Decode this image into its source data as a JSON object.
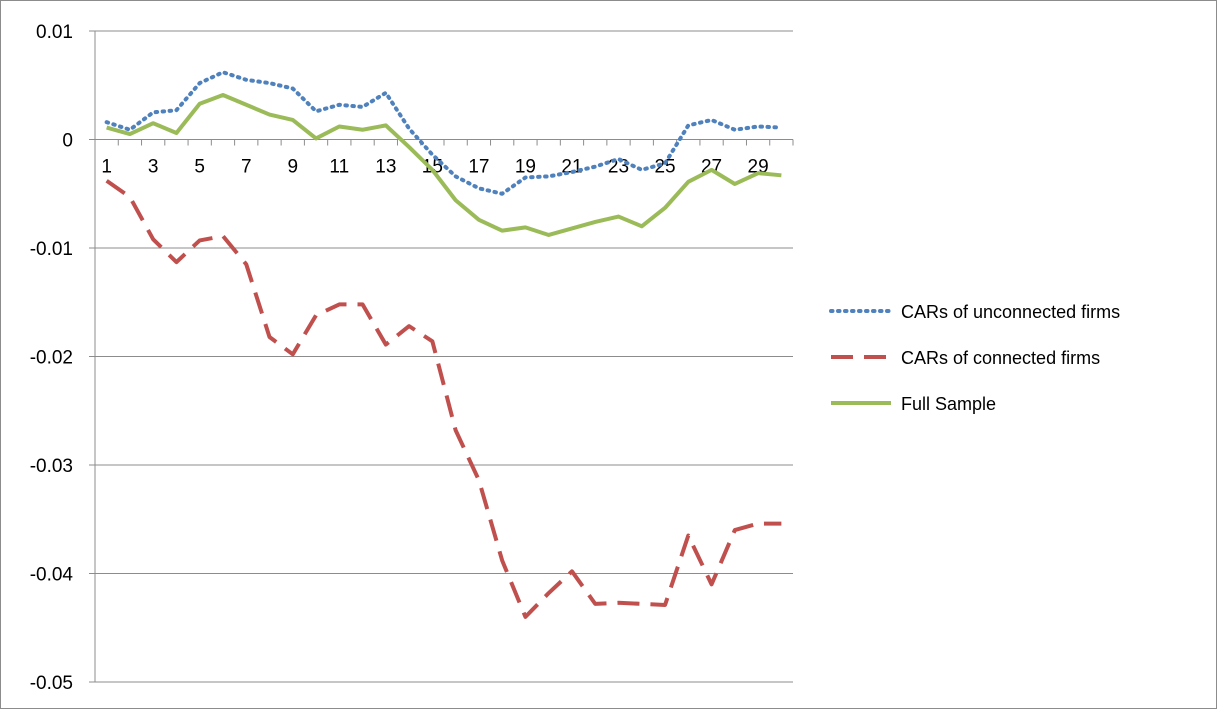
{
  "chart_data": {
    "type": "line",
    "title": "",
    "xlabel": "",
    "ylabel": "",
    "x": [
      1,
      2,
      3,
      4,
      5,
      6,
      7,
      8,
      9,
      10,
      11,
      12,
      13,
      14,
      15,
      16,
      17,
      18,
      19,
      20,
      21,
      22,
      23,
      24,
      25,
      26,
      27,
      28,
      29,
      30
    ],
    "x_tick_labels": [
      "1",
      "3",
      "5",
      "7",
      "9",
      "11",
      "13",
      "15",
      "17",
      "19",
      "21",
      "23",
      "25",
      "27",
      "29"
    ],
    "ylim": [
      -0.05,
      0.01
    ],
    "y_tick_labels": [
      "0.01",
      "0",
      "-0.01",
      "-0.02",
      "-0.03",
      "-0.04",
      "-0.05"
    ],
    "y_ticks": [
      0.01,
      0,
      -0.01,
      -0.02,
      -0.03,
      -0.04,
      -0.05
    ],
    "grid": "horizontal",
    "legend_position": "right",
    "series": [
      {
        "name": "CARs of unconnected firms",
        "style": "dotted",
        "color": "#4f81bd",
        "values": [
          0.0016,
          0.0009,
          0.0025,
          0.0027,
          0.0052,
          0.0062,
          0.0055,
          0.0052,
          0.0047,
          0.0026,
          0.0032,
          0.003,
          0.0043,
          0.001,
          -0.0014,
          -0.0034,
          -0.0045,
          -0.005,
          -0.0035,
          -0.0034,
          -0.003,
          -0.0025,
          -0.0018,
          -0.0028,
          -0.0022,
          0.0013,
          0.0018,
          0.0009,
          0.0012,
          0.0011
        ]
      },
      {
        "name": "CARs of connected firms",
        "style": "dashed",
        "color": "#c0504d",
        "values": [
          -0.0038,
          -0.0053,
          -0.0092,
          -0.0113,
          -0.0093,
          -0.0089,
          -0.0115,
          -0.0182,
          -0.0198,
          -0.0162,
          -0.0152,
          -0.0152,
          -0.0189,
          -0.0172,
          -0.0186,
          -0.0268,
          -0.0314,
          -0.0388,
          -0.044,
          -0.0418,
          -0.0398,
          -0.0428,
          -0.0427,
          -0.0428,
          -0.0429,
          -0.0365,
          -0.041,
          -0.036,
          -0.0354,
          -0.0354
        ]
      },
      {
        "name": "Full Sample",
        "style": "solid",
        "color": "#9bbb59",
        "values": [
          0.0011,
          0.0005,
          0.0015,
          0.0006,
          0.0033,
          0.0041,
          0.0032,
          0.0023,
          0.0018,
          0.0001,
          0.0012,
          0.0009,
          0.0013,
          -0.0007,
          -0.0028,
          -0.0056,
          -0.0074,
          -0.0084,
          -0.0081,
          -0.0088,
          -0.0082,
          -0.0076,
          -0.0071,
          -0.008,
          -0.0063,
          -0.0039,
          -0.0028,
          -0.0041,
          -0.0031,
          -0.0033
        ]
      }
    ]
  }
}
